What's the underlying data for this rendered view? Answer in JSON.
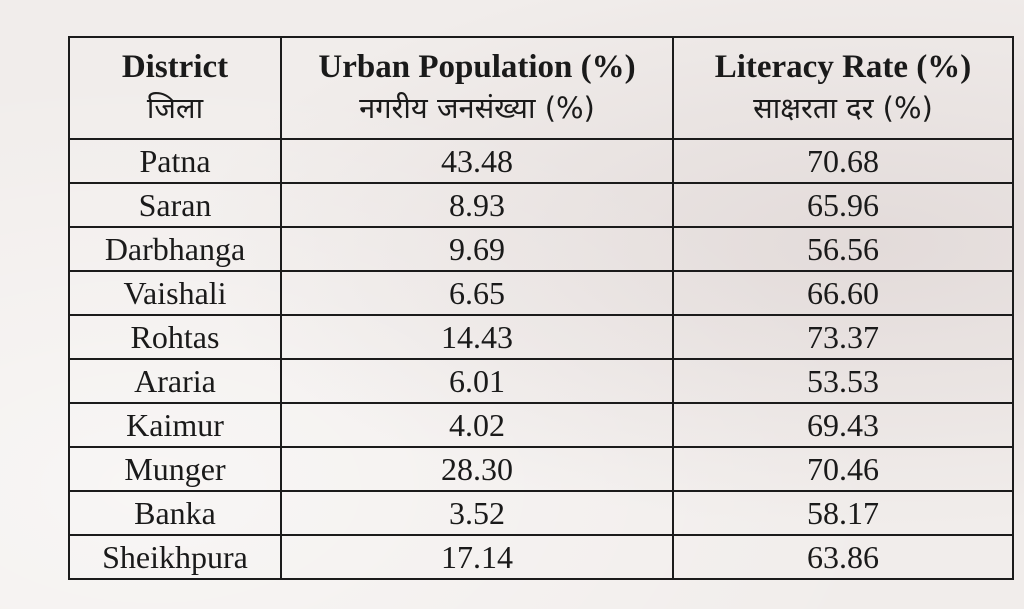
{
  "table": {
    "headers": [
      {
        "en": "District",
        "hi": "जिला"
      },
      {
        "en": "Urban Population (%)",
        "hi": "नगरीय जनसंख्या (%)"
      },
      {
        "en": "Literacy Rate (%)",
        "hi": "साक्षरता दर (%)"
      }
    ],
    "rows": [
      {
        "district": "Patna",
        "urban": "43.48",
        "literacy": "70.68"
      },
      {
        "district": "Saran",
        "urban": "8.93",
        "literacy": "65.96"
      },
      {
        "district": "Darbhanga",
        "urban": "9.69",
        "literacy": "56.56"
      },
      {
        "district": "Vaishali",
        "urban": "6.65",
        "literacy": "66.60"
      },
      {
        "district": "Rohtas",
        "urban": "14.43",
        "literacy": "73.37"
      },
      {
        "district": "Araria",
        "urban": "6.01",
        "literacy": "53.53"
      },
      {
        "district": "Kaimur",
        "urban": "4.02",
        "literacy": "69.43"
      },
      {
        "district": "Munger",
        "urban": "28.30",
        "literacy": "70.46"
      },
      {
        "district": "Banka",
        "urban": "3.52",
        "literacy": "58.17"
      },
      {
        "district": "Sheikhpura",
        "urban": "17.14",
        "literacy": "63.86"
      }
    ]
  }
}
